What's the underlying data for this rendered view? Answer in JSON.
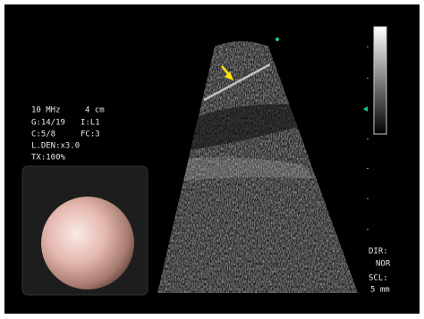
{
  "overlay": {
    "frequency": "10 MHz",
    "depth": "4 cm",
    "gain": "G:14/19",
    "image_mode": "I:L1",
    "compound": "C:5/8",
    "frame": "FC:3",
    "density": "L.DEN:x3.0",
    "power": "TX:100%"
  },
  "scan_info": {
    "direction_label": "DIR:",
    "direction": "NOR",
    "scale_label": "SCL:",
    "scale": "5 mm"
  }
}
